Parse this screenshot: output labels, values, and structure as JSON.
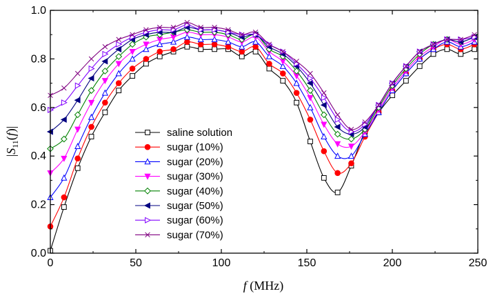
{
  "chart_data": {
    "type": "line",
    "xlabel": "f (MHz)",
    "ylabel": "|S11(f)|",
    "xlim": [
      0,
      250
    ],
    "ylim": [
      0.0,
      1.0
    ],
    "xticks": [
      "0",
      "50",
      "100",
      "150",
      "200",
      "250"
    ],
    "yticks": [
      "0.0",
      "0.2",
      "0.4",
      "0.6",
      "0.8",
      "1.0"
    ],
    "legend_position": "center-left",
    "x": [
      0,
      8,
      16,
      24,
      32,
      40,
      48,
      56,
      64,
      72,
      80,
      88,
      96,
      104,
      112,
      120,
      128,
      136,
      144,
      152,
      160,
      168,
      176,
      184,
      192,
      200,
      208,
      216,
      224,
      232,
      240,
      248
    ],
    "series": [
      {
        "name": "saline solution",
        "color": "#000000",
        "marker": "square-open",
        "values": [
          0.01,
          0.19,
          0.35,
          0.48,
          0.58,
          0.67,
          0.73,
          0.78,
          0.81,
          0.83,
          0.85,
          0.84,
          0.84,
          0.84,
          0.81,
          0.83,
          0.76,
          0.71,
          0.62,
          0.46,
          0.31,
          0.25,
          0.36,
          0.5,
          0.58,
          0.65,
          0.71,
          0.77,
          0.82,
          0.84,
          0.82,
          0.84
        ]
      },
      {
        "name": "sugar (10%)",
        "color": "#ff0000",
        "marker": "circle-filled",
        "values": [
          0.11,
          0.23,
          0.39,
          0.52,
          0.62,
          0.7,
          0.76,
          0.8,
          0.83,
          0.84,
          0.87,
          0.86,
          0.86,
          0.85,
          0.83,
          0.85,
          0.78,
          0.74,
          0.66,
          0.55,
          0.42,
          0.33,
          0.37,
          0.48,
          0.58,
          0.67,
          0.74,
          0.8,
          0.84,
          0.86,
          0.84,
          0.86
        ]
      },
      {
        "name": "sugar (20%)",
        "color": "#0000ff",
        "marker": "triangle-up-open",
        "values": [
          0.23,
          0.31,
          0.44,
          0.56,
          0.66,
          0.74,
          0.8,
          0.84,
          0.86,
          0.87,
          0.89,
          0.88,
          0.88,
          0.87,
          0.85,
          0.87,
          0.81,
          0.77,
          0.7,
          0.6,
          0.48,
          0.4,
          0.4,
          0.49,
          0.58,
          0.67,
          0.74,
          0.8,
          0.84,
          0.87,
          0.85,
          0.87
        ]
      },
      {
        "name": "sugar (30%)",
        "color": "#ff00ff",
        "marker": "triangle-down-filled",
        "values": [
          0.33,
          0.39,
          0.51,
          0.62,
          0.71,
          0.78,
          0.83,
          0.86,
          0.88,
          0.89,
          0.91,
          0.9,
          0.9,
          0.89,
          0.87,
          0.89,
          0.83,
          0.79,
          0.73,
          0.64,
          0.53,
          0.45,
          0.44,
          0.5,
          0.59,
          0.68,
          0.75,
          0.81,
          0.85,
          0.88,
          0.86,
          0.88
        ]
      },
      {
        "name": "sugar (40%)",
        "color": "#008000",
        "marker": "diamond-open",
        "values": [
          0.43,
          0.47,
          0.57,
          0.67,
          0.75,
          0.81,
          0.86,
          0.89,
          0.9,
          0.91,
          0.92,
          0.91,
          0.91,
          0.9,
          0.88,
          0.9,
          0.84,
          0.81,
          0.75,
          0.67,
          0.57,
          0.49,
          0.47,
          0.51,
          0.6,
          0.69,
          0.76,
          0.82,
          0.86,
          0.88,
          0.87,
          0.89
        ]
      },
      {
        "name": "sugar (50%)",
        "color": "#000080",
        "marker": "triangle-left-filled",
        "values": [
          0.5,
          0.55,
          0.63,
          0.72,
          0.79,
          0.84,
          0.88,
          0.9,
          0.91,
          0.91,
          0.93,
          0.92,
          0.92,
          0.91,
          0.89,
          0.9,
          0.85,
          0.82,
          0.77,
          0.7,
          0.61,
          0.52,
          0.49,
          0.52,
          0.61,
          0.7,
          0.77,
          0.83,
          0.86,
          0.88,
          0.87,
          0.89
        ]
      },
      {
        "name": "sugar (60%)",
        "color": "#8000ff",
        "marker": "triangle-right-open",
        "values": [
          0.59,
          0.62,
          0.69,
          0.76,
          0.82,
          0.86,
          0.89,
          0.91,
          0.92,
          0.92,
          0.94,
          0.92,
          0.92,
          0.91,
          0.9,
          0.9,
          0.86,
          0.83,
          0.78,
          0.72,
          0.64,
          0.55,
          0.5,
          0.53,
          0.61,
          0.7,
          0.77,
          0.83,
          0.86,
          0.88,
          0.88,
          0.89
        ]
      },
      {
        "name": "sugar (70%)",
        "color": "#800080",
        "marker": "cross-x",
        "values": [
          0.65,
          0.68,
          0.74,
          0.8,
          0.85,
          0.88,
          0.9,
          0.92,
          0.93,
          0.93,
          0.95,
          0.93,
          0.93,
          0.92,
          0.9,
          0.91,
          0.86,
          0.83,
          0.79,
          0.74,
          0.66,
          0.57,
          0.51,
          0.54,
          0.61,
          0.7,
          0.77,
          0.83,
          0.86,
          0.88,
          0.88,
          0.9
        ]
      }
    ]
  }
}
